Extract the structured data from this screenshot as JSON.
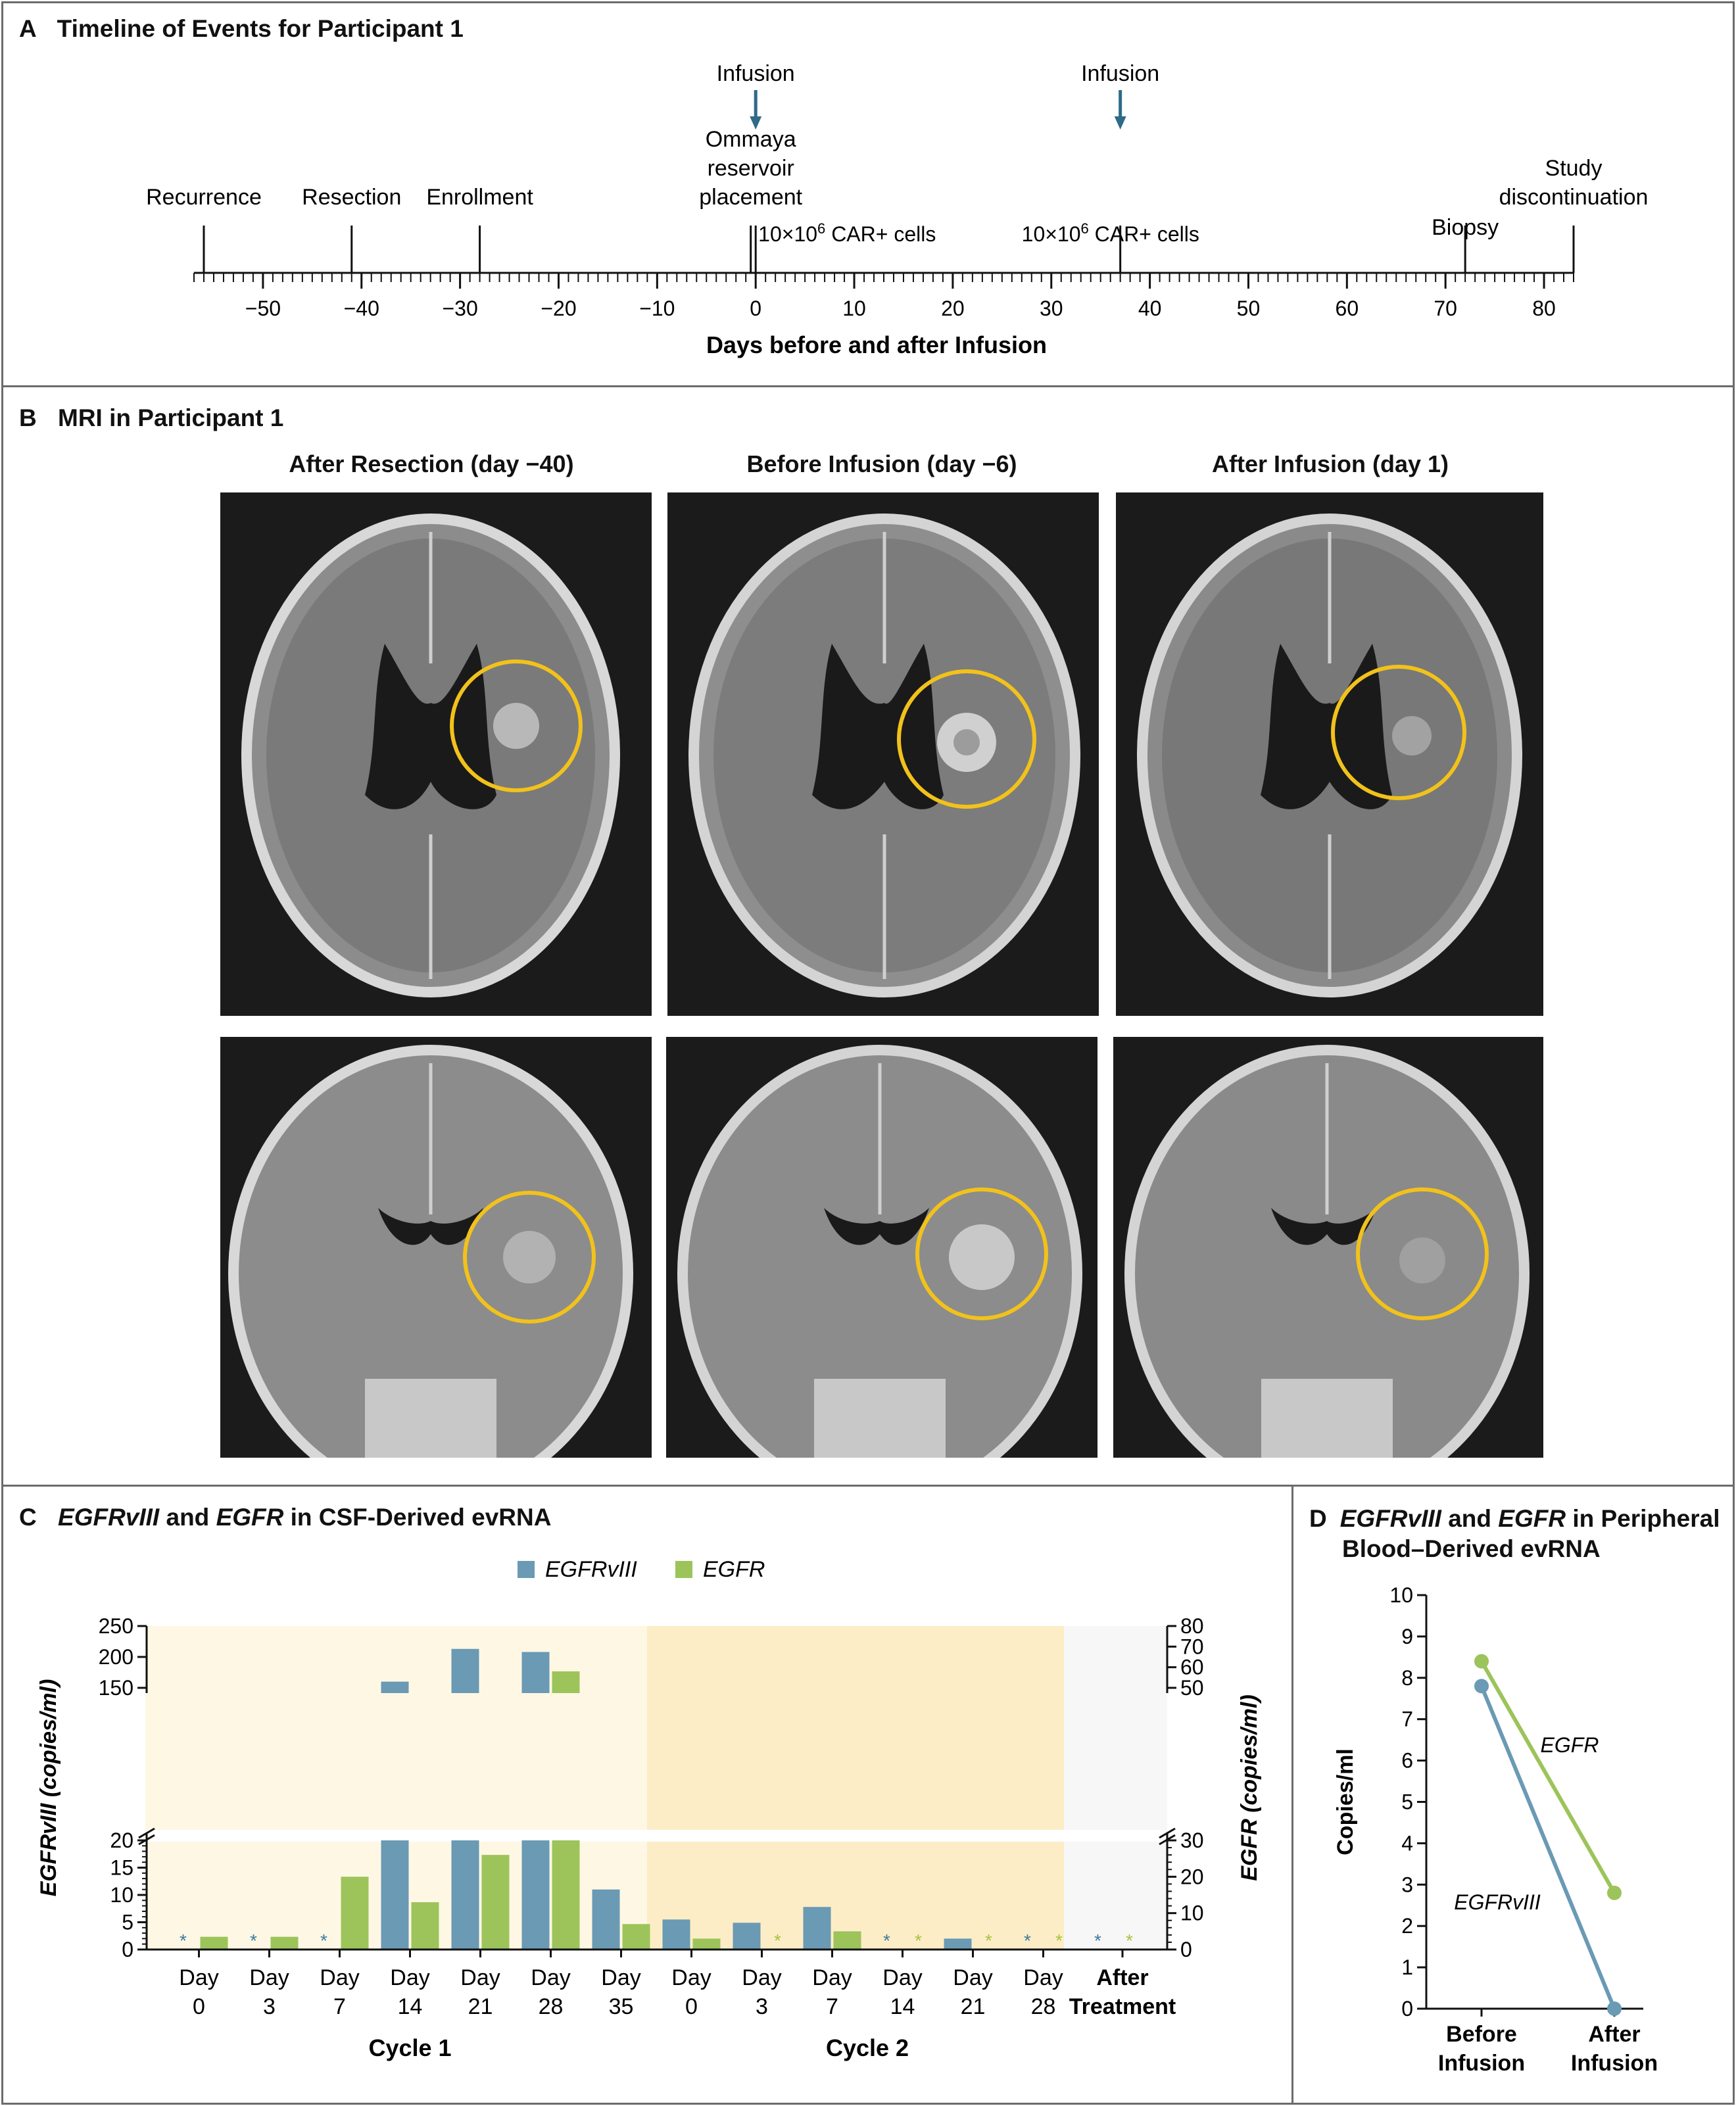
{
  "panelA": {
    "letter": "A",
    "title": "Timeline of Events for Participant 1",
    "axis_label": "Days before and after Infusion",
    "ticks": [
      -50,
      -40,
      -30,
      -20,
      -10,
      0,
      10,
      20,
      30,
      40,
      50,
      60,
      70,
      80
    ],
    "tick_labels": [
      "−50",
      "−40",
      "−30",
      "−20",
      "−10",
      "0",
      "10",
      "20",
      "30",
      "40",
      "50",
      "60",
      "70",
      "80"
    ],
    "range": [
      -57,
      83
    ],
    "events": [
      {
        "label": "Recurrence",
        "day": -56
      },
      {
        "label": "Resection",
        "day": -41
      },
      {
        "label": "Enrollment",
        "day": -28
      },
      {
        "label_lines": [
          "Ommaya",
          "reservoir",
          "placement"
        ],
        "day": -0.5
      },
      {
        "label_lines": [
          "Study",
          "discontinuation"
        ],
        "day": 83
      },
      {
        "label": "Biopsy",
        "day": 72
      }
    ],
    "infusions": [
      {
        "label": "Infusion",
        "day": 0,
        "dose_prefix": "10×10",
        "dose_exp": "6",
        "dose_suffix": " CAR+ cells"
      },
      {
        "label": "Infusion",
        "day": 37,
        "dose_prefix": "10×10",
        "dose_exp": "6",
        "dose_suffix": " CAR+ cells"
      }
    ]
  },
  "panelB": {
    "letter": "B",
    "title": "MRI in Participant 1",
    "captions": [
      "After Resection (day −40)",
      "Before Infusion (day −6)",
      "After Infusion (day 1)"
    ]
  },
  "panelC": {
    "letter": "C",
    "title_parts": [
      "EGFRvIII",
      " and ",
      "EGFR",
      " in CSF-Derived evRNA"
    ],
    "legend": [
      {
        "name": "EGFRvIII",
        "color": "#6a9ab4"
      },
      {
        "name": "EGFR",
        "color": "#9cc45a"
      }
    ],
    "left_axis_label": "EGFRvIII (copies/ml)",
    "right_axis_label": "EGFR (copies/ml)",
    "cycle_labels": [
      "Cycle 1",
      "Cycle 2"
    ],
    "colors": {
      "cycle1_bg": "#fef7e4",
      "cycle2_bg": "#fdedc6",
      "after_bg": "#f7f7f7",
      "star_vIII": "#3f7aa0",
      "star_egfr": "#a6c441"
    }
  },
  "panelD": {
    "letter": "D",
    "title_lines": [
      [
        "EGFRvIII",
        " and ",
        "EGFR",
        " in Peripheral"
      ],
      [
        "Blood–Derived evRNA"
      ]
    ],
    "ylabel": "Copies/ml",
    "series_labels": {
      "egfr": "EGFR",
      "vIII": "EGFRvIII"
    }
  },
  "chart_data": [
    {
      "type": "bar",
      "title": "EGFRvIII and EGFR in CSF-Derived evRNA",
      "categories": [
        "Day 0 (Cycle 1)",
        "Day 3 (Cycle 1)",
        "Day 7 (Cycle 1)",
        "Day 14 (Cycle 1)",
        "Day 21 (Cycle 1)",
        "Day 28 (Cycle 1)",
        "Day 35 (Cycle 1)",
        "Day 0 (Cycle 2)",
        "Day 3 (Cycle 2)",
        "Day 7 (Cycle 2)",
        "Day 14 (Cycle 2)",
        "Day 21 (Cycle 2)",
        "Day 28 (Cycle 2)",
        "After Treatment"
      ],
      "category_lines": [
        [
          "Day",
          "0"
        ],
        [
          "Day",
          "3"
        ],
        [
          "Day",
          "7"
        ],
        [
          "Day",
          "14"
        ],
        [
          "Day",
          "21"
        ],
        [
          "Day",
          "28"
        ],
        [
          "Day",
          "35"
        ],
        [
          "Day",
          "0"
        ],
        [
          "Day",
          "3"
        ],
        [
          "Day",
          "7"
        ],
        [
          "Day",
          "14"
        ],
        [
          "Day",
          "21"
        ],
        [
          "Day",
          "28"
        ],
        [
          "After",
          "Treatment"
        ]
      ],
      "series": [
        {
          "name": "EGFRvIII",
          "axis": "left",
          "unit": "copies/ml",
          "values": [
            0,
            0,
            0,
            160,
            213,
            208,
            11,
            5.5,
            4.9,
            7.8,
            0,
            2,
            0,
            0
          ]
        },
        {
          "name": "EGFR",
          "axis": "right",
          "unit": "copies/ml",
          "values": [
            3.5,
            3.5,
            20,
            13,
            26,
            58,
            7,
            3,
            0,
            5,
            0,
            0,
            0,
            0
          ]
        }
      ],
      "not_detected_vIII": [
        0,
        1,
        2,
        10,
        12,
        13
      ],
      "not_detected_egfr": [
        8,
        10,
        11,
        12,
        13
      ],
      "left_axis": {
        "ticks_lower": [
          0,
          5,
          10,
          15,
          20
        ],
        "ticks_upper": [
          150,
          200,
          250
        ],
        "break_between": [
          20,
          150
        ],
        "ylim": [
          0,
          250
        ]
      },
      "right_axis": {
        "ticks_lower": [
          0,
          10,
          20,
          30
        ],
        "ticks_upper": [
          50,
          60,
          70,
          80
        ],
        "break_between": [
          30,
          50
        ],
        "ylim": [
          0,
          80
        ]
      },
      "groups": [
        {
          "label": "Cycle 1",
          "from": 0,
          "to": 6
        },
        {
          "label": "Cycle 2",
          "from": 7,
          "to": 12
        },
        {
          "label": "After Treatment",
          "from": 13,
          "to": 13
        }
      ]
    },
    {
      "type": "line",
      "title": "EGFRvIII and EGFR in Peripheral Blood–Derived evRNA",
      "categories": [
        "Before Infusion",
        "After Infusion"
      ],
      "category_lines": [
        [
          "Before",
          "Infusion"
        ],
        [
          "After",
          "Infusion"
        ]
      ],
      "series": [
        {
          "name": "EGFR",
          "values": [
            8.4,
            2.8
          ]
        },
        {
          "name": "EGFRvIII",
          "values": [
            7.8,
            0
          ]
        }
      ],
      "ylabel": "Copies/ml",
      "yticks": [
        0,
        1,
        2,
        3,
        4,
        5,
        6,
        7,
        8,
        9,
        10
      ],
      "ylim": [
        0,
        10
      ]
    }
  ]
}
